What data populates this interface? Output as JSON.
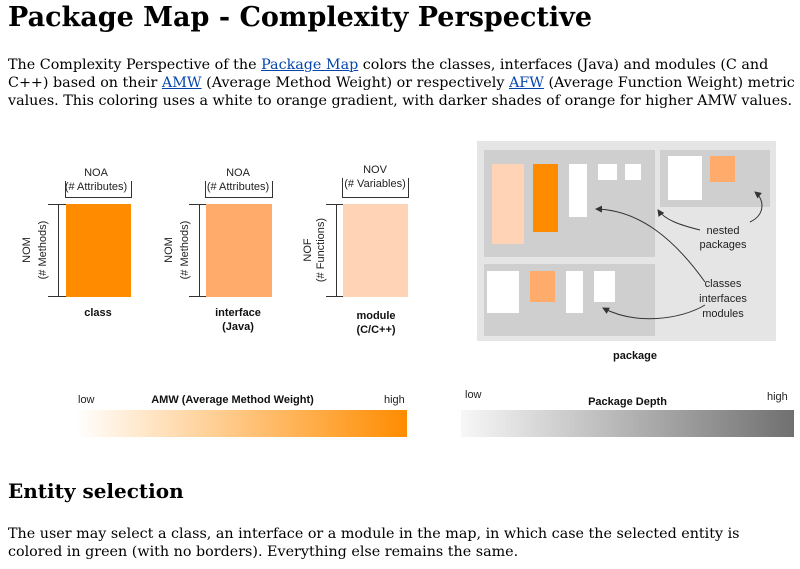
{
  "title": "Package Map - Complexity Perspective",
  "intro": {
    "t1": "The Complexity Perspective of the ",
    "link_package_map": "Package Map",
    "t2": " colors the classes, interfaces (Java) and modules (C and C++) based on their ",
    "link_amw": "AMW",
    "t3": " (Average Method Weight) or respectively ",
    "link_afw": "AFW",
    "t4": " (Average Function Weight) metric values. This coloring uses a white to orange gradient, with darker shades of orange for higher AMW values."
  },
  "figure": {
    "class": {
      "top_label": "NOA",
      "top_sub": "(# Attributes)",
      "side_label": "NOM",
      "side_sub": "(# Methods)",
      "name": "class",
      "color": "#ff8c00"
    },
    "interface": {
      "top_label": "NOA",
      "top_sub": "(# Attributes)",
      "side_label": "NOM",
      "side_sub": "(# Methods)",
      "name": "interface",
      "name2": "(Java)",
      "color": "#ffab6b"
    },
    "module": {
      "top_label": "NOV",
      "top_sub": "(# Variables)",
      "side_label": "NOF",
      "side_sub": "(# Functions)",
      "name": "module",
      "name2": "(C/C++)",
      "color": "#ffd4b6"
    },
    "package_label": "package",
    "nested_label_1": "nested",
    "nested_label_2": "packages",
    "classes_label_1": "classes",
    "classes_label_2": "interfaces",
    "classes_label_3": "modules",
    "amw_low": "low",
    "amw_title": "AMW (Average Method Weight)",
    "amw_high": "high",
    "depth_low": "low",
    "depth_title": "Package Depth",
    "depth_high": "high",
    "colors": {
      "orange": "#ff8c00",
      "light_orange": "#ffab6b",
      "pale_orange": "#ffd4b6",
      "pkg_bg": "#e5e5e5",
      "nested_bg": "#cfcfcf"
    }
  },
  "section2_title": "Entity selection",
  "section2_text": "The user may select a class, an interface or a module in the map, in which case the selected entity is colored in green (with no borders). Everything else remains the same."
}
